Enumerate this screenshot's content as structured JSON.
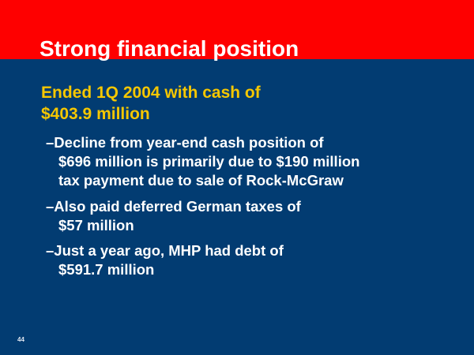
{
  "slide": {
    "title": "Strong financial position",
    "main_bullet": [
      "Ended 1Q 2004 with cash of",
      "$403.9 million"
    ],
    "sub_bullets": [
      [
        "–Decline from year-end cash position of",
        "$696 million is primarily due to $190 million",
        "tax payment due to sale of Rock-McGraw"
      ],
      [
        "–Also paid deferred German taxes of",
        "$57 million"
      ],
      [
        "–Just a year ago, MHP had debt of",
        "$591.7 million"
      ]
    ],
    "page_number": "44",
    "colors": {
      "header": "#fe0000",
      "background": "#023c72",
      "main_text": "#f6c700",
      "sub_text": "#ffffff"
    }
  }
}
